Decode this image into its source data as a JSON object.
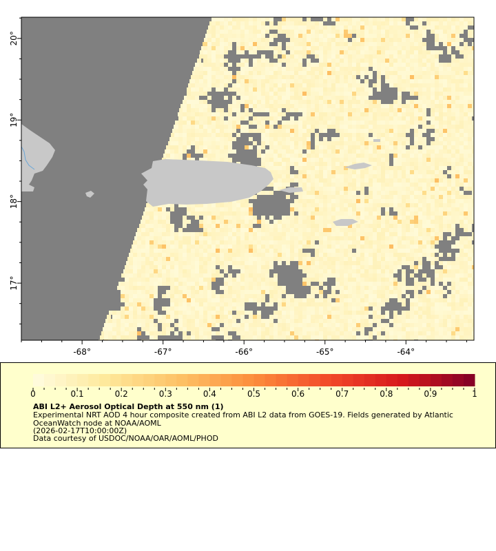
{
  "map": {
    "lat_range": [
      16.3,
      20.26
    ],
    "lon_range": [
      -68.75,
      -63.16
    ],
    "lat_tick_labels": [
      "17°",
      "18°",
      "19°",
      "20°"
    ],
    "lat_ticks": [
      17,
      18,
      19,
      20
    ],
    "lon_tick_labels": [
      "-68°",
      "-67°",
      "-66°",
      "-65°",
      "-64°"
    ],
    "lon_ticks": [
      -68,
      -67,
      -66,
      -65,
      -64
    ],
    "colors": {
      "no_data": "#808080",
      "land": "#c8c8c8",
      "river": "#6aa6d8"
    }
  },
  "legend": {
    "colorbar": {
      "range": [
        0,
        1
      ],
      "tick_labels": [
        "0",
        "0.1",
        "0.2",
        "0.3",
        "0.4",
        "0.5",
        "0.6",
        "0.7",
        "0.8",
        "0.9",
        "1"
      ],
      "colors": [
        "#fffde0",
        "#fee89a",
        "#fdc165",
        "#fc8d3c",
        "#f24a2a",
        "#d7191c",
        "#800026"
      ]
    },
    "title": "ABI L2+ Aerosol Optical Depth at 550 nm (1)",
    "description": "Experimental NRT AOD 4 hour composite created from ABI L2 data from GOES-19. Fields generated by Atlantic OceanWatch node at NOAA/AOML",
    "time": "(2026-02-17T10:00:00Z)",
    "credit": "Data courtesy of USDOC/NOAA/OAR/AOML/PHOD"
  }
}
